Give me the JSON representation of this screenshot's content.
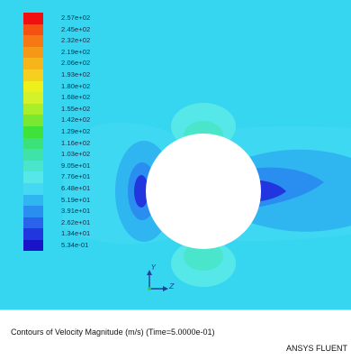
{
  "colors": {
    "background": "#36d6f0",
    "cylinder": "#ffffff",
    "axis_color": "#223f9a"
  },
  "legend": {
    "entries": [
      {
        "label": "2.57e+02",
        "color": "#f01010"
      },
      {
        "label": "2.45e+02",
        "color": "#f45212"
      },
      {
        "label": "2.32e+02",
        "color": "#f57814"
      },
      {
        "label": "2.19e+02",
        "color": "#f59818"
      },
      {
        "label": "2.06e+02",
        "color": "#f5b51b"
      },
      {
        "label": "1.93e+02",
        "color": "#f5d01e"
      },
      {
        "label": "1.80e+02",
        "color": "#eef01e"
      },
      {
        "label": "1.68e+02",
        "color": "#d4f22a"
      },
      {
        "label": "1.55e+02",
        "color": "#a8ef2a"
      },
      {
        "label": "1.42e+02",
        "color": "#78e830"
      },
      {
        "label": "1.29e+02",
        "color": "#3ee23a"
      },
      {
        "label": "1.16e+02",
        "color": "#3be27a"
      },
      {
        "label": "1.03e+02",
        "color": "#3fe3a8"
      },
      {
        "label": "9.05e+01",
        "color": "#49e6cc"
      },
      {
        "label": "7.76e+01",
        "color": "#56e7e8"
      },
      {
        "label": "6.48e+01",
        "color": "#44d8f2"
      },
      {
        "label": "5.19e+01",
        "color": "#2fb5f0"
      },
      {
        "label": "3.91e+01",
        "color": "#2a8ef0"
      },
      {
        "label": "2.62e+01",
        "color": "#2a62ec"
      },
      {
        "label": "1.34e+01",
        "color": "#2236e0"
      },
      {
        "label": "5.34e-01",
        "color": "#1a12c8"
      }
    ]
  },
  "axes": {
    "x_label": "Z",
    "y_label": "Y"
  },
  "caption": {
    "title": "Contours of Velocity Magnitude (m/s)  (Time=5.0000e-01)",
    "brand": "ANSYS FLUENT"
  }
}
